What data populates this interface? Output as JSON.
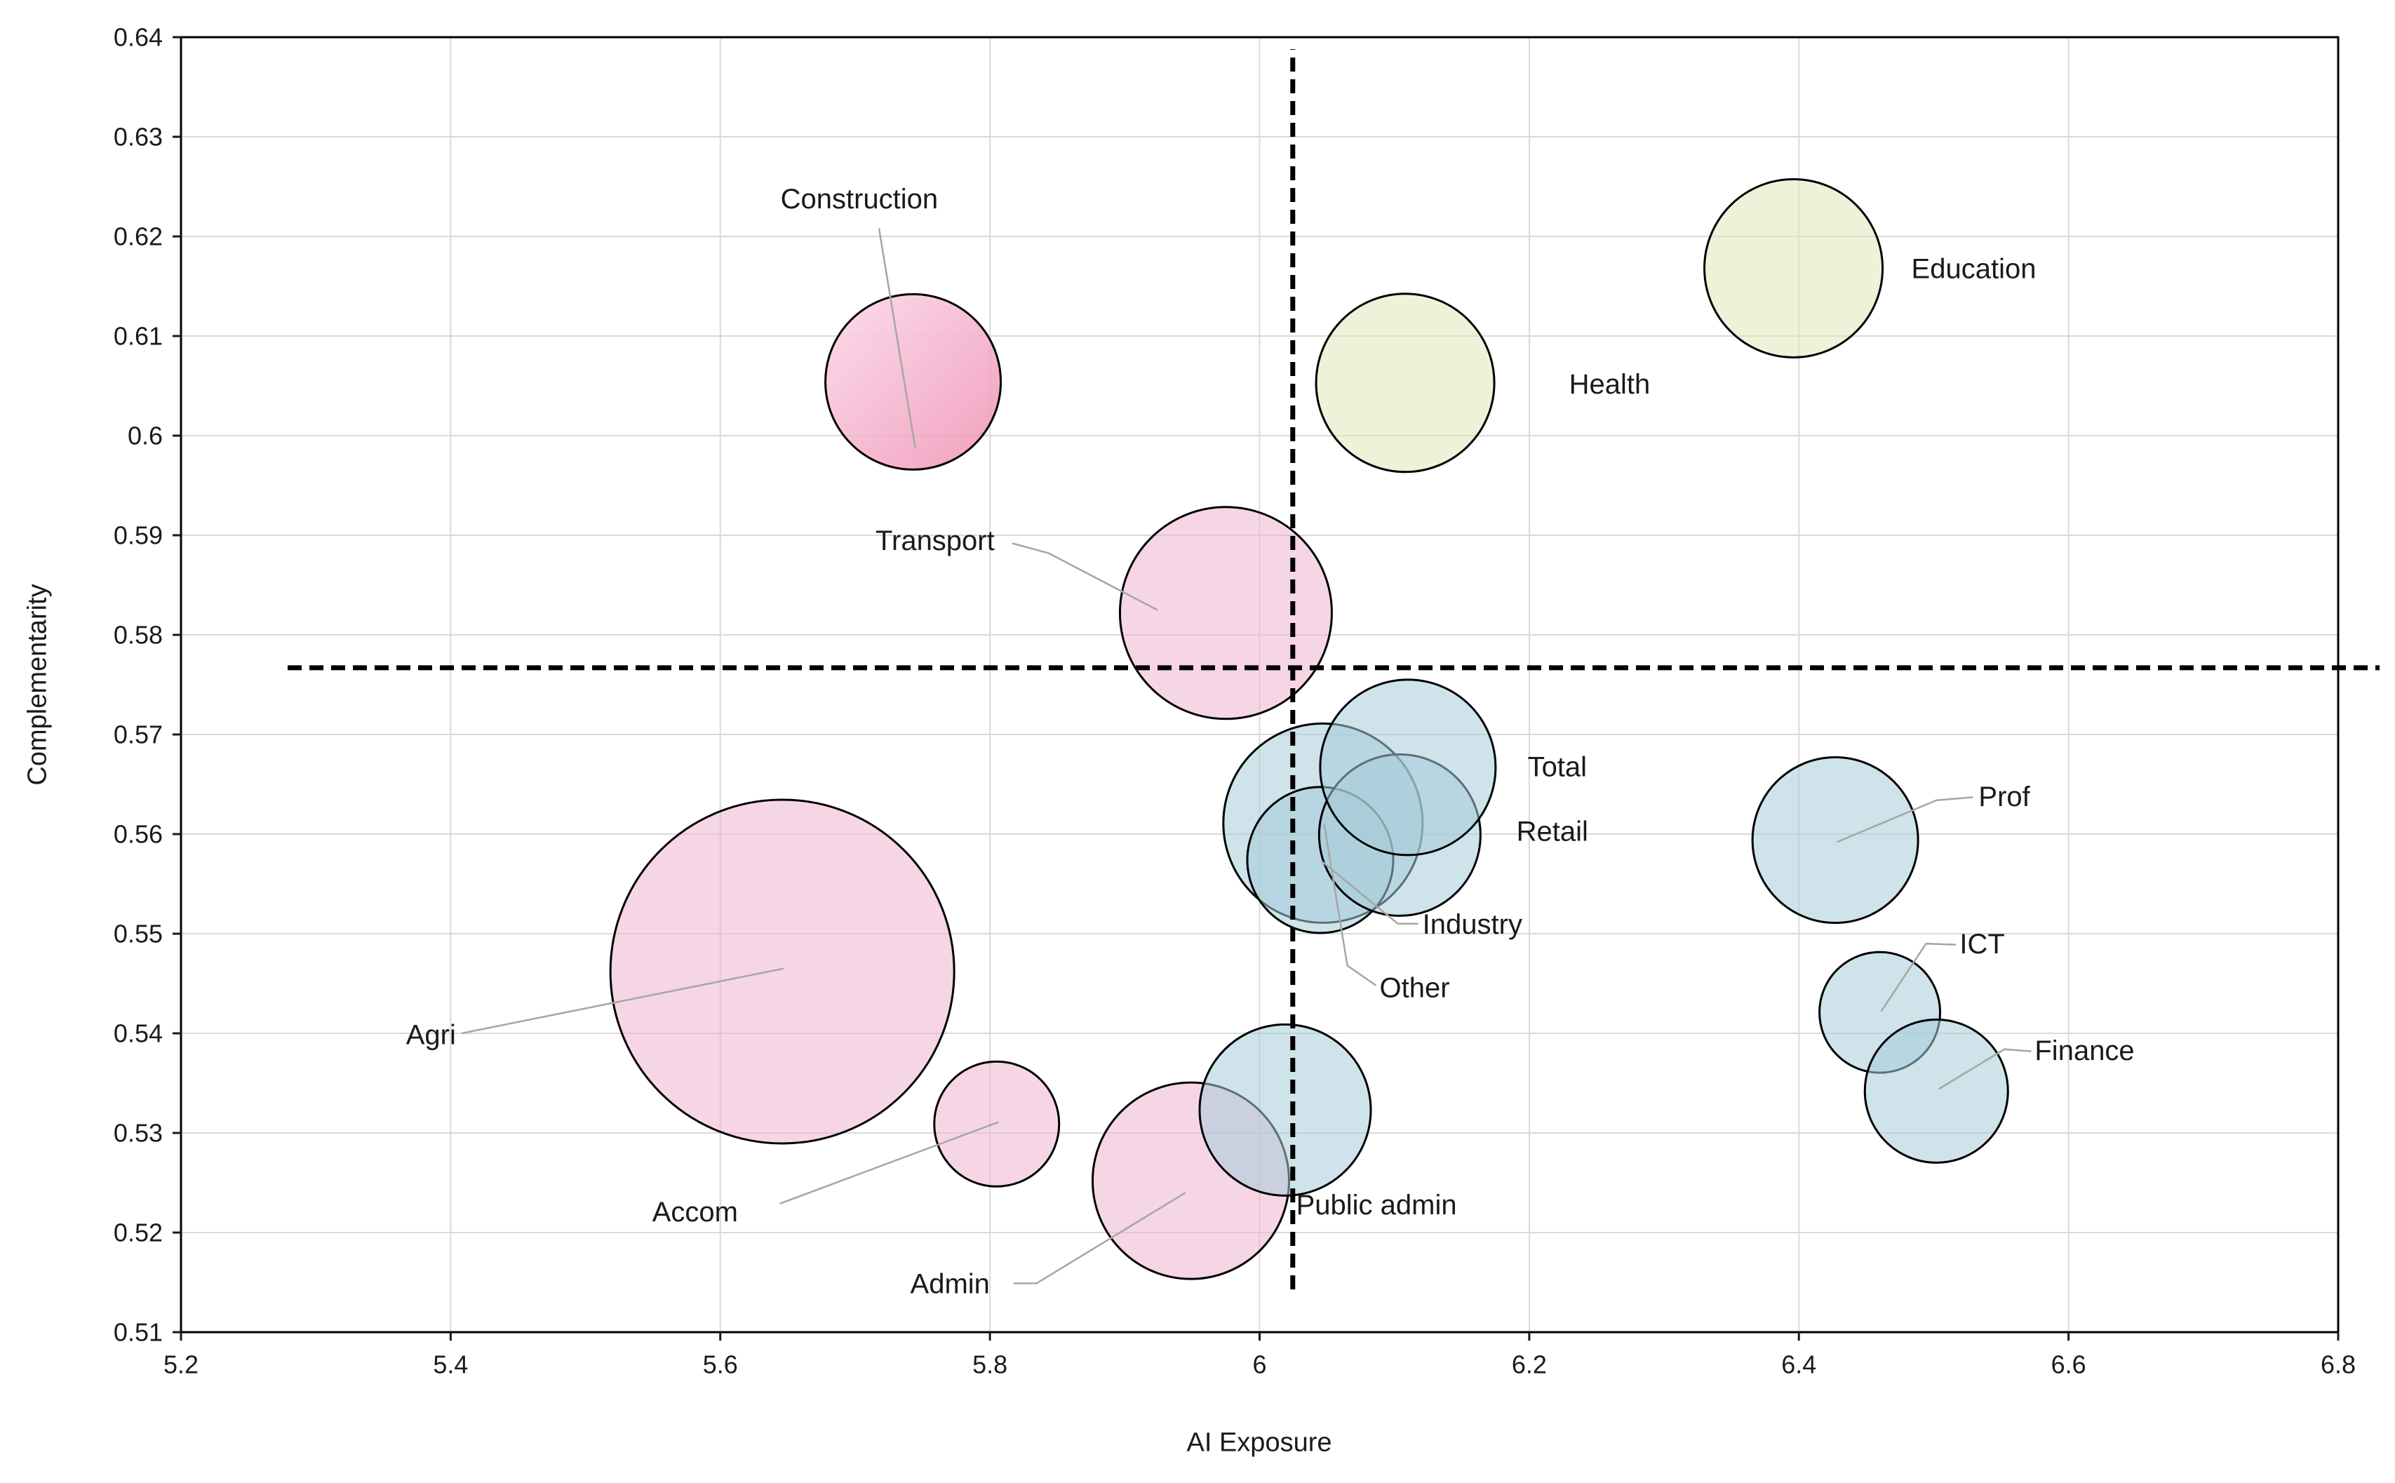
{
  "chart_data": {
    "type": "scatter",
    "subtype": "bubble",
    "title": "",
    "xlabel": "AI Exposure",
    "ylabel": "Complementarity",
    "xlim": [
      5.2,
      6.8
    ],
    "ylim": [
      0.51,
      0.64
    ],
    "grid": "on",
    "x_ticks": [
      "5.2",
      "5.4",
      "5.6",
      "5.8",
      "6",
      "6.2",
      "6.4",
      "6.6",
      "6.8"
    ],
    "y_ticks": [
      "0.51",
      "0.52",
      "0.53",
      "0.54",
      "0.55",
      "0.56",
      "0.57",
      "0.58",
      "0.59",
      "0.6",
      "0.61",
      "0.62",
      "0.63",
      "0.64"
    ],
    "colors": {
      "pink": "#efb4cf",
      "teal": "#a5ccd9",
      "yellow": "#e2e8ba",
      "construction_gradient_start": "#fbd7e7",
      "construction_gradient_end": "#ee8fb2",
      "outline": "#000000",
      "leader": "#a6a6a6",
      "grid": "#d9d9d9",
      "refline": "#000000"
    },
    "reference_lines": [
      {
        "id": "vertical",
        "orientation": "vertical",
        "x": 6.0246,
        "y_from": 0.5143,
        "y_to": 0.6388
      },
      {
        "id": "horizontal",
        "orientation": "horizontal",
        "y": 0.5767,
        "x_from": 5.2791,
        "x_to": 6.8307
      }
    ],
    "points": [
      {
        "id": "agri",
        "x": 5.646,
        "y": 0.5462,
        "r": 245,
        "color": "pink",
        "label": {
          "text": "Agri",
          "x": 5.4039,
          "y": 0.5399,
          "anchor": "end"
        },
        "leader": [
          [
            5.4081,
            0.54
          ],
          [
            5.6469,
            0.5465
          ]
        ]
      },
      {
        "id": "admin",
        "x": 5.949,
        "y": 0.5252,
        "r": 140,
        "color": "pink",
        "label": {
          "text": "Admin",
          "x": 5.7409,
          "y": 0.5149,
          "anchor": "start"
        },
        "leader": [
          [
            5.8174,
            0.5149
          ],
          [
            5.8346,
            0.5149
          ],
          [
            5.9449,
            0.524
          ]
        ]
      },
      {
        "id": "public-admin",
        "x": 6.019,
        "y": 0.5323,
        "r": 122,
        "color": "teal",
        "label": {
          "text": "Public admin",
          "x": 6.0271,
          "y": 0.5228,
          "anchor": "start"
        },
        "leader": []
      },
      {
        "id": "accom",
        "x": 5.805,
        "y": 0.5309,
        "r": 89,
        "color": "pink",
        "label": {
          "text": "Accom",
          "x": 5.5495,
          "y": 0.5221,
          "anchor": "start"
        },
        "leader": [
          [
            5.6442,
            0.5229
          ],
          [
            5.8065,
            0.5311
          ]
        ]
      },
      {
        "id": "transport",
        "x": 5.975,
        "y": 0.5822,
        "r": 151,
        "color": "pink",
        "label": {
          "text": "Transport",
          "x": 5.7593,
          "y": 0.5895,
          "anchor": "middle"
        },
        "leader": [
          [
            5.8165,
            0.5892
          ],
          [
            5.8436,
            0.5882
          ],
          [
            5.9242,
            0.5825
          ]
        ]
      },
      {
        "id": "construction",
        "x": 5.743,
        "y": 0.6054,
        "r": 125,
        "color": "construction",
        "label": {
          "text": "Construction",
          "x": 5.7031,
          "y": 0.6238,
          "anchor": "middle"
        },
        "leader": [
          [
            5.7177,
            0.6208
          ],
          [
            5.7447,
            0.5987
          ]
        ]
      },
      {
        "id": "health",
        "x": 6.108,
        "y": 0.6053,
        "r": 127,
        "color": "yellow",
        "label": {
          "text": "Health",
          "x": 6.2295,
          "y": 0.6052,
          "anchor": "start"
        },
        "leader": []
      },
      {
        "id": "education",
        "x": 6.396,
        "y": 0.6168,
        "r": 127,
        "color": "yellow",
        "label": {
          "text": "Education",
          "x": 6.4834,
          "y": 0.6168,
          "anchor": "start"
        },
        "leader": []
      },
      {
        "id": "other",
        "x": 6.047,
        "y": 0.5611,
        "r": 142,
        "color": "teal",
        "label": {
          "text": "Other",
          "x": 6.089,
          "y": 0.5446,
          "anchor": "start"
        },
        "leader": [
          [
            6.0864,
            0.5448
          ],
          [
            6.0651,
            0.5468
          ],
          [
            6.0479,
            0.561
          ]
        ]
      },
      {
        "id": "industry",
        "x": 6.045,
        "y": 0.5574,
        "r": 104,
        "color": "teal",
        "label": {
          "text": "Industry",
          "x": 6.1208,
          "y": 0.551,
          "anchor": "start"
        },
        "leader": [
          [
            6.1177,
            0.551
          ],
          [
            6.1026,
            0.551
          ],
          [
            6.0458,
            0.5573
          ]
        ]
      },
      {
        "id": "retail",
        "x": 6.104,
        "y": 0.5599,
        "r": 115,
        "color": "teal",
        "label": {
          "text": "Retail",
          "x": 6.1905,
          "y": 0.5603,
          "anchor": "start"
        },
        "leader": []
      },
      {
        "id": "total",
        "x": 6.11,
        "y": 0.5667,
        "r": 125,
        "color": "teal",
        "label": {
          "text": "Total",
          "x": 6.1988,
          "y": 0.5668,
          "anchor": "start"
        },
        "leader": []
      },
      {
        "id": "prof",
        "x": 6.427,
        "y": 0.5594,
        "r": 118,
        "color": "teal",
        "label": {
          "text": "Prof",
          "x": 6.5333,
          "y": 0.5638,
          "anchor": "start"
        },
        "leader": [
          [
            6.5291,
            0.5637
          ],
          [
            6.5021,
            0.5634
          ],
          [
            6.4282,
            0.5592
          ]
        ]
      },
      {
        "id": "ict",
        "x": 6.46,
        "y": 0.5421,
        "r": 86,
        "color": "teal",
        "label": {
          "text": "ICT",
          "x": 6.5192,
          "y": 0.549,
          "anchor": "start"
        },
        "leader": [
          [
            6.5166,
            0.5489
          ],
          [
            6.4943,
            0.549
          ],
          [
            6.461,
            0.5422
          ]
        ]
      },
      {
        "id": "finance",
        "x": 6.502,
        "y": 0.5342,
        "r": 102,
        "color": "teal",
        "label": {
          "text": "Finance",
          "x": 6.5749,
          "y": 0.5383,
          "anchor": "start"
        },
        "leader": [
          [
            6.5723,
            0.5382
          ],
          [
            6.5525,
            0.5384
          ],
          [
            6.5036,
            0.5344
          ]
        ]
      }
    ]
  }
}
